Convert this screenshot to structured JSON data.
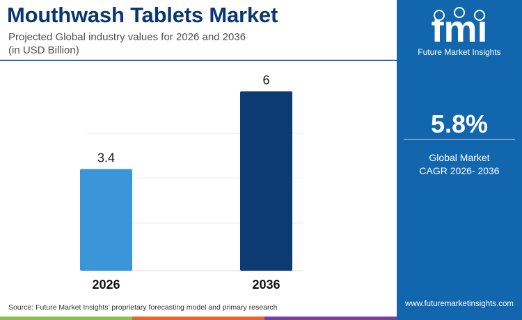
{
  "header": {
    "title": "Mouthwash Tablets Market",
    "subtitle_line1": "Projected Global industry values for 2026 and 2036",
    "subtitle_line2": "(in USD Billion)"
  },
  "chart_data": {
    "type": "bar",
    "categories": [
      "2026",
      "2036"
    ],
    "values": [
      3.4,
      6
    ],
    "data_labels": [
      "3.4",
      "6"
    ],
    "title": "",
    "xlabel": "",
    "ylabel": "",
    "ylim": [
      0,
      6.5
    ],
    "grid": true,
    "legend": "none",
    "colors": [
      "#3a96d8",
      "#0c3b73"
    ]
  },
  "sidebar": {
    "logo_mark": "fmi",
    "logo_text": "Future Market Insights",
    "cagr_value": "5.8%",
    "cagr_label_line1": "Global Market",
    "cagr_label_line2": "CAGR 2026- 2036",
    "website": "www.futuremarketinsights.com",
    "background_color": "#1266ae"
  },
  "footer": {
    "source": "Source: Future Market Insights’ proprietary forecasting model and primary research",
    "bar_colors": [
      "#8bc34a",
      "#e8642c",
      "#7b3fa0"
    ]
  }
}
